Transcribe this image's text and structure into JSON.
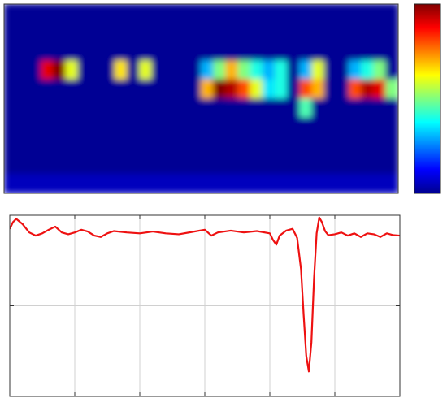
{
  "chart_data": [
    {
      "type": "heatmap",
      "clim": [
        0,
        1
      ],
      "colormap": "jet",
      "matrix": [
        [
          0.02,
          0.02,
          0.02,
          0.02,
          0.02,
          0.02,
          0.02,
          0.02,
          0.02,
          0.02,
          0.02,
          0.02,
          0.02,
          0.02,
          0.02,
          0.02,
          0.02,
          0.02,
          0.02,
          0.02,
          0.02,
          0.02,
          0.02,
          0.02,
          0.02,
          0.02,
          0.02,
          0.02,
          0.02,
          0.02,
          0.02,
          0.02
        ],
        [
          0.02,
          0.02,
          0.02,
          0.02,
          0.02,
          0.02,
          0.02,
          0.02,
          0.02,
          0.02,
          0.02,
          0.02,
          0.02,
          0.02,
          0.02,
          0.02,
          0.02,
          0.02,
          0.02,
          0.02,
          0.02,
          0.02,
          0.02,
          0.02,
          0.02,
          0.02,
          0.02,
          0.02,
          0.02,
          0.02,
          0.02,
          0.02
        ],
        [
          0.02,
          0.02,
          0.02,
          0.02,
          0.02,
          0.02,
          0.02,
          0.02,
          0.02,
          0.02,
          0.02,
          0.02,
          0.02,
          0.02,
          0.02,
          0.02,
          0.02,
          0.02,
          0.02,
          0.02,
          0.02,
          0.02,
          0.02,
          0.02,
          0.02,
          0.02,
          0.02,
          0.02,
          0.02,
          0.02,
          0.02,
          0.02
        ],
        [
          0.02,
          0.02,
          0.02,
          0.9,
          1,
          0.6,
          0.02,
          0.02,
          0.02,
          0.65,
          0.02,
          0.6,
          0.02,
          0.02,
          0.02,
          0.02,
          0.3,
          0.5,
          0.7,
          0.5,
          0.4,
          0.3,
          0.4,
          0.02,
          0.3,
          0.6,
          0.02,
          0.02,
          0.3,
          0.4,
          0.5,
          0.02
        ],
        [
          0.02,
          0.02,
          0.02,
          0.02,
          0.02,
          0.02,
          0.02,
          0.02,
          0.02,
          0.02,
          0.02,
          0.02,
          0.02,
          0.02,
          0.02,
          0.02,
          0.7,
          1,
          0.95,
          0.8,
          0.6,
          0.35,
          0.4,
          0.02,
          0.8,
          0.7,
          0.02,
          0.02,
          0.8,
          0.95,
          0.9,
          0.5
        ],
        [
          0.02,
          0.02,
          0.02,
          0.02,
          0.02,
          0.02,
          0.02,
          0.02,
          0.02,
          0.02,
          0.02,
          0.02,
          0.02,
          0.02,
          0.02,
          0.02,
          0.02,
          0.02,
          0.02,
          0.02,
          0.02,
          0.02,
          0.02,
          0.02,
          0.45,
          0.02,
          0.02,
          0.02,
          0.02,
          0.02,
          0.02,
          0.02
        ],
        [
          0.02,
          0.02,
          0.02,
          0.02,
          0.02,
          0.02,
          0.02,
          0.02,
          0.02,
          0.02,
          0.02,
          0.02,
          0.02,
          0.02,
          0.02,
          0.02,
          0.02,
          0.02,
          0.02,
          0.02,
          0.02,
          0.02,
          0.02,
          0.02,
          0.02,
          0.02,
          0.02,
          0.02,
          0.02,
          0.02,
          0.02,
          0.02
        ],
        [
          0.02,
          0.02,
          0.02,
          0.02,
          0.02,
          0.02,
          0.02,
          0.02,
          0.02,
          0.02,
          0.02,
          0.02,
          0.02,
          0.02,
          0.02,
          0.02,
          0.02,
          0.02,
          0.02,
          0.02,
          0.02,
          0.02,
          0.02,
          0.02,
          0.02,
          0.02,
          0.02,
          0.02,
          0.02,
          0.02,
          0.02,
          0.02
        ],
        [
          0.02,
          0.02,
          0.02,
          0.02,
          0.02,
          0.02,
          0.02,
          0.02,
          0.02,
          0.02,
          0.02,
          0.02,
          0.02,
          0.02,
          0.02,
          0.02,
          0.02,
          0.02,
          0.02,
          0.02,
          0.02,
          0.02,
          0.02,
          0.02,
          0.02,
          0.02,
          0.02,
          0.02,
          0.02,
          0.02,
          0.02,
          0.02
        ],
        [
          0.06,
          0.06,
          0.06,
          0.06,
          0.06,
          0.06,
          0.06,
          0.06,
          0.06,
          0.06,
          0.06,
          0.06,
          0.06,
          0.06,
          0.06,
          0.06,
          0.06,
          0.06,
          0.06,
          0.06,
          0.06,
          0.06,
          0.06,
          0.06,
          0.06,
          0.06,
          0.06,
          0.06,
          0.06,
          0.06,
          0.06,
          0.06
        ]
      ]
    },
    {
      "type": "line",
      "color": "#ee1111",
      "grid": true,
      "x": [
        0,
        0.05,
        0.1,
        0.2,
        0.3,
        0.4,
        0.5,
        0.6,
        0.7,
        0.8,
        0.9,
        1.0,
        1.1,
        1.2,
        1.3,
        1.4,
        1.5,
        1.6,
        1.8,
        2.0,
        2.2,
        2.4,
        2.6,
        2.8,
        3.0,
        3.1,
        3.2,
        3.4,
        3.6,
        3.8,
        4.0,
        4.05,
        4.1,
        4.15,
        4.25,
        4.35,
        4.42,
        4.48,
        4.52,
        4.56,
        4.6,
        4.64,
        4.68,
        4.72,
        4.76,
        4.8,
        4.85,
        4.9,
        5.0,
        5.1,
        5.2,
        5.3,
        5.4,
        5.5,
        5.6,
        5.7,
        5.8,
        5.9,
        6.0
      ],
      "values": [
        3.7,
        3.85,
        3.92,
        3.8,
        3.62,
        3.55,
        3.6,
        3.68,
        3.75,
        3.62,
        3.58,
        3.62,
        3.68,
        3.64,
        3.55,
        3.52,
        3.6,
        3.65,
        3.62,
        3.6,
        3.64,
        3.6,
        3.58,
        3.63,
        3.68,
        3.55,
        3.62,
        3.66,
        3.62,
        3.65,
        3.6,
        3.45,
        3.35,
        3.55,
        3.66,
        3.7,
        3.5,
        2.8,
        1.8,
        0.9,
        0.55,
        1.2,
        2.6,
        3.6,
        3.95,
        3.85,
        3.65,
        3.56,
        3.58,
        3.62,
        3.55,
        3.6,
        3.52,
        3.6,
        3.58,
        3.52,
        3.6,
        3.56,
        3.55
      ],
      "xlim": [
        0,
        6
      ],
      "xticks": [
        0,
        1,
        2,
        3,
        4,
        5,
        6
      ],
      "ylim": [
        0,
        4
      ],
      "yticks": [
        0,
        2,
        4
      ]
    }
  ]
}
